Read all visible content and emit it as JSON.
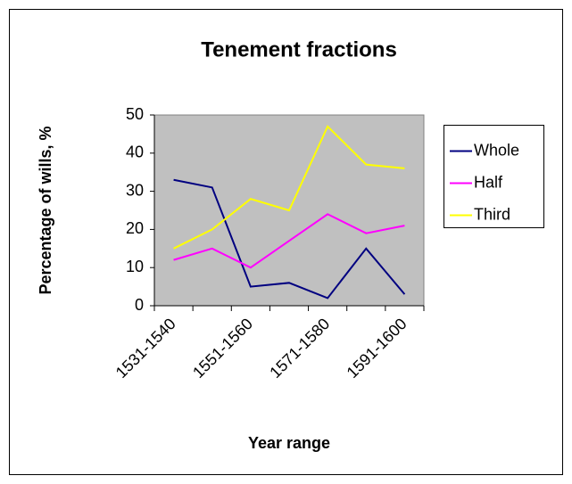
{
  "chart_data": {
    "type": "line",
    "title": "Tenement fractions",
    "x_label": "Year range",
    "y_label": "Percentage of wills, %",
    "categories": [
      "1531-1540",
      null,
      "1551-1560",
      null,
      "1571-1580",
      null,
      "1591-1600"
    ],
    "series": [
      {
        "name": "Whole",
        "color": "#000080",
        "values": [
          33,
          31,
          5,
          6,
          2,
          15,
          3
        ]
      },
      {
        "name": "Half",
        "color": "#ff00ff",
        "values": [
          12,
          15,
          10,
          17,
          24,
          19,
          21
        ]
      },
      {
        "name": "Third",
        "color": "#ffff00",
        "values": [
          15,
          20,
          28,
          25,
          47,
          37,
          36
        ]
      }
    ],
    "ylim": [
      0,
      50
    ],
    "yticks": [
      0,
      10,
      20,
      30,
      40,
      50
    ],
    "grid": false,
    "plot_background": "#c0c0c0",
    "legend": "right"
  }
}
